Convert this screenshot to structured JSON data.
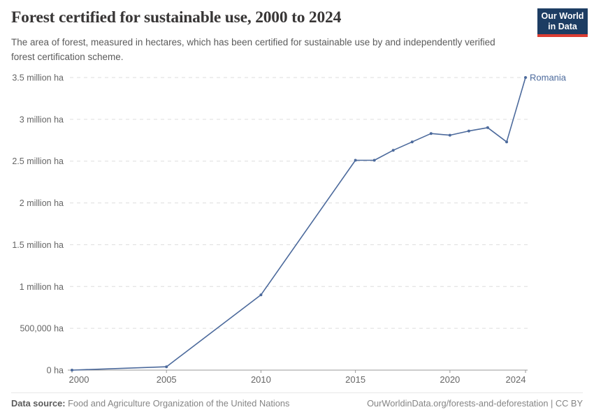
{
  "header": {
    "title": "Forest certified for sustainable use, 2000 to 2024",
    "subtitle": "The area of forest, measured in hectares, which has been certified for sustainable use by and independently verified forest certification scheme.",
    "logo_line1": "Our World",
    "logo_line2": "in Data"
  },
  "colors": {
    "logo_bg": "#1d3d63",
    "logo_accent": "#dc3d33",
    "series": "#4c6a9c",
    "gridline": "#dddddd",
    "axis": "#999999",
    "tick_label": "#666666",
    "title_text": "#383636",
    "subtitle_text": "#5b5b5b",
    "footer_text": "#858585"
  },
  "chart_data": {
    "type": "line",
    "title": "Forest certified for sustainable use, 2000 to 2024",
    "xlabel": "",
    "ylabel": "",
    "xlim": [
      2000,
      2024
    ],
    "ylim": [
      0,
      3500000
    ],
    "grid": "horizontal dashed",
    "legend_position": "label at end of line",
    "x_ticks": [
      2000,
      2005,
      2010,
      2015,
      2020,
      2024
    ],
    "y_ticks": [
      {
        "value": 0,
        "label": "0 ha"
      },
      {
        "value": 500000,
        "label": "500,000 ha"
      },
      {
        "value": 1000000,
        "label": "1 million ha"
      },
      {
        "value": 1500000,
        "label": "1.5 million ha"
      },
      {
        "value": 2000000,
        "label": "2 million ha"
      },
      {
        "value": 2500000,
        "label": "2.5 million ha"
      },
      {
        "value": 3000000,
        "label": "3 million ha"
      },
      {
        "value": 3500000,
        "label": "3.5 million ha"
      }
    ],
    "series": [
      {
        "name": "Romania",
        "x": [
          2000,
          2005,
          2010,
          2015,
          2016,
          2017,
          2018,
          2019,
          2020,
          2021,
          2022,
          2023,
          2024
        ],
        "values": [
          0,
          40000,
          900000,
          2510000,
          2510000,
          2630000,
          2730000,
          2830000,
          2810000,
          2860000,
          2900000,
          2730000,
          3500000
        ]
      }
    ]
  },
  "footer": {
    "source_label": "Data source:",
    "source_text": " Food and Agriculture Organization of the United Nations",
    "link": "OurWorldinData.org/forests-and-deforestation",
    "separator": " | ",
    "license": "CC BY"
  }
}
